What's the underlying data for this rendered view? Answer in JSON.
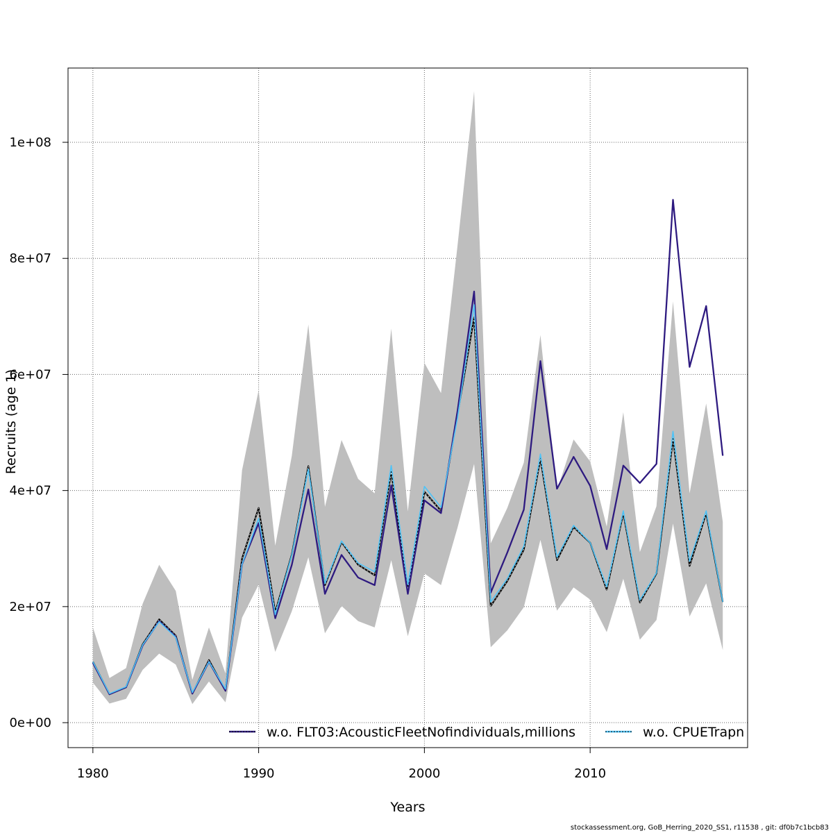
{
  "chart_data": {
    "type": "line",
    "xlabel": "Years",
    "ylabel": "Recruits (age 1)",
    "xlim": [
      1978.5,
      2019.5
    ],
    "ylim": [
      -4300000,
      112800000
    ],
    "x_ticks": [
      1980,
      1990,
      2000,
      2010
    ],
    "y_ticks": [
      0,
      20000000,
      40000000,
      60000000,
      80000000,
      100000000
    ],
    "y_tick_labels": [
      "0e+00",
      "2e+07",
      "4e+07",
      "6e+07",
      "8e+07",
      "1e+08"
    ],
    "grid": true,
    "legend_position": "bottom",
    "x": [
      1980,
      1981,
      1982,
      1983,
      1984,
      1985,
      1986,
      1987,
      1988,
      1989,
      1990,
      1991,
      1992,
      1993,
      1994,
      1995,
      1996,
      1997,
      1998,
      1999,
      2000,
      2001,
      2002,
      2003,
      2004,
      2005,
      2006,
      2007,
      2008,
      2009,
      2010,
      2011,
      2012,
      2013,
      2014,
      2015,
      2016,
      2017,
      2018
    ],
    "confidence_band": {
      "color": "#bebebe",
      "upper": [
        16400000,
        7700000,
        9400000,
        20500000,
        27200000,
        22700000,
        7400000,
        16400000,
        8500000,
        43500000,
        57300000,
        30500000,
        46000000,
        68600000,
        37200000,
        48700000,
        42000000,
        39500000,
        67900000,
        36400000,
        62000000,
        56800000,
        82200000,
        108800000,
        30900000,
        37000000,
        44800000,
        66800000,
        40000000,
        48800000,
        45000000,
        33800000,
        53500000,
        29400000,
        37300000,
        72600000,
        39500000,
        55000000,
        34600000
      ],
      "lower": [
        6900000,
        3300000,
        4100000,
        9100000,
        11900000,
        10000000,
        3200000,
        7100000,
        3500000,
        18100000,
        23800000,
        12200000,
        19200000,
        28500000,
        15400000,
        20100000,
        17500000,
        16400000,
        28000000,
        14900000,
        25700000,
        23700000,
        33600000,
        44600000,
        13000000,
        15900000,
        19900000,
        31500000,
        19300000,
        23300000,
        21200000,
        15600000,
        24800000,
        14300000,
        17700000,
        34300000,
        18300000,
        24000000,
        12500000
      ]
    },
    "series": [
      {
        "name": "",
        "color": "#000000",
        "style": "solid",
        "values": [
          10500000,
          4900000,
          6100000,
          13500000,
          17800000,
          15000000,
          5000000,
          10800000,
          5500000,
          28300000,
          37000000,
          19000000,
          29000000,
          44200000,
          23700000,
          31100000,
          27200000,
          25400000,
          43200000,
          23000000,
          39800000,
          36500000,
          53100000,
          69800000,
          20100000,
          24400000,
          29800000,
          45500000,
          28000000,
          33700000,
          31000000,
          22900000,
          36100000,
          20700000,
          25700000,
          48900000,
          27000000,
          36100000,
          20800000
        ]
      },
      {
        "name": "w.o. FLT03:AcousticFleetNofindividuals,millions",
        "color": "#2e1a80",
        "style": "solid",
        "values": [
          10300000,
          4900000,
          6100000,
          13300000,
          17500000,
          14800000,
          5000000,
          10500000,
          5500000,
          27300000,
          34400000,
          18000000,
          27200000,
          40200000,
          22200000,
          28900000,
          25000000,
          23700000,
          40900000,
          22200000,
          38300000,
          36100000,
          53700000,
          74300000,
          22400000,
          29300000,
          36700000,
          62300000,
          40300000,
          45800000,
          40800000,
          29900000,
          44300000,
          41300000,
          44600000,
          90100000,
          61300000,
          71800000,
          46000000
        ]
      },
      {
        "name": "w.o. CPUETrapn",
        "color": "#4fc3f7",
        "style": "solid",
        "values": [
          10500000,
          5000000,
          6200000,
          13400000,
          17400000,
          14700000,
          5200000,
          10500000,
          5800000,
          27300000,
          35200000,
          18600000,
          28900000,
          43700000,
          24000000,
          31300000,
          27500000,
          26000000,
          44300000,
          23800000,
          40700000,
          37100000,
          52500000,
          72000000,
          20800000,
          24800000,
          30400000,
          46300000,
          28500000,
          34000000,
          31000000,
          23400000,
          36500000,
          21100000,
          25800000,
          50200000,
          27800000,
          36500000,
          20800000
        ]
      }
    ]
  },
  "footer": "stockassessment.org, GoB_Herring_2020_SS1, r11538 , git: df0b7c1bcb83"
}
